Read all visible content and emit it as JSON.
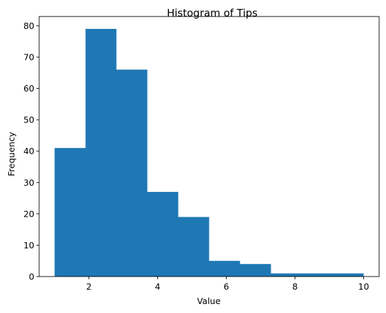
{
  "chart_data": {
    "type": "bar",
    "title": "Histogram of Tips",
    "xlabel": "Value",
    "ylabel": "Frequency",
    "bin_edges": [
      1.0,
      1.9,
      2.8,
      3.7,
      4.6,
      5.5,
      6.4,
      7.3,
      8.2,
      9.1,
      10.0
    ],
    "values": [
      41,
      79,
      66,
      27,
      19,
      5,
      4,
      1,
      1,
      1
    ],
    "xlim": [
      0.55,
      10.45
    ],
    "ylim": [
      0,
      82.95
    ],
    "xticks": [
      2,
      4,
      6,
      8,
      10
    ],
    "yticks": [
      0,
      10,
      20,
      30,
      40,
      50,
      60,
      70,
      80
    ],
    "bar_color": "#1f77b4",
    "grid": false,
    "legend": "none"
  }
}
